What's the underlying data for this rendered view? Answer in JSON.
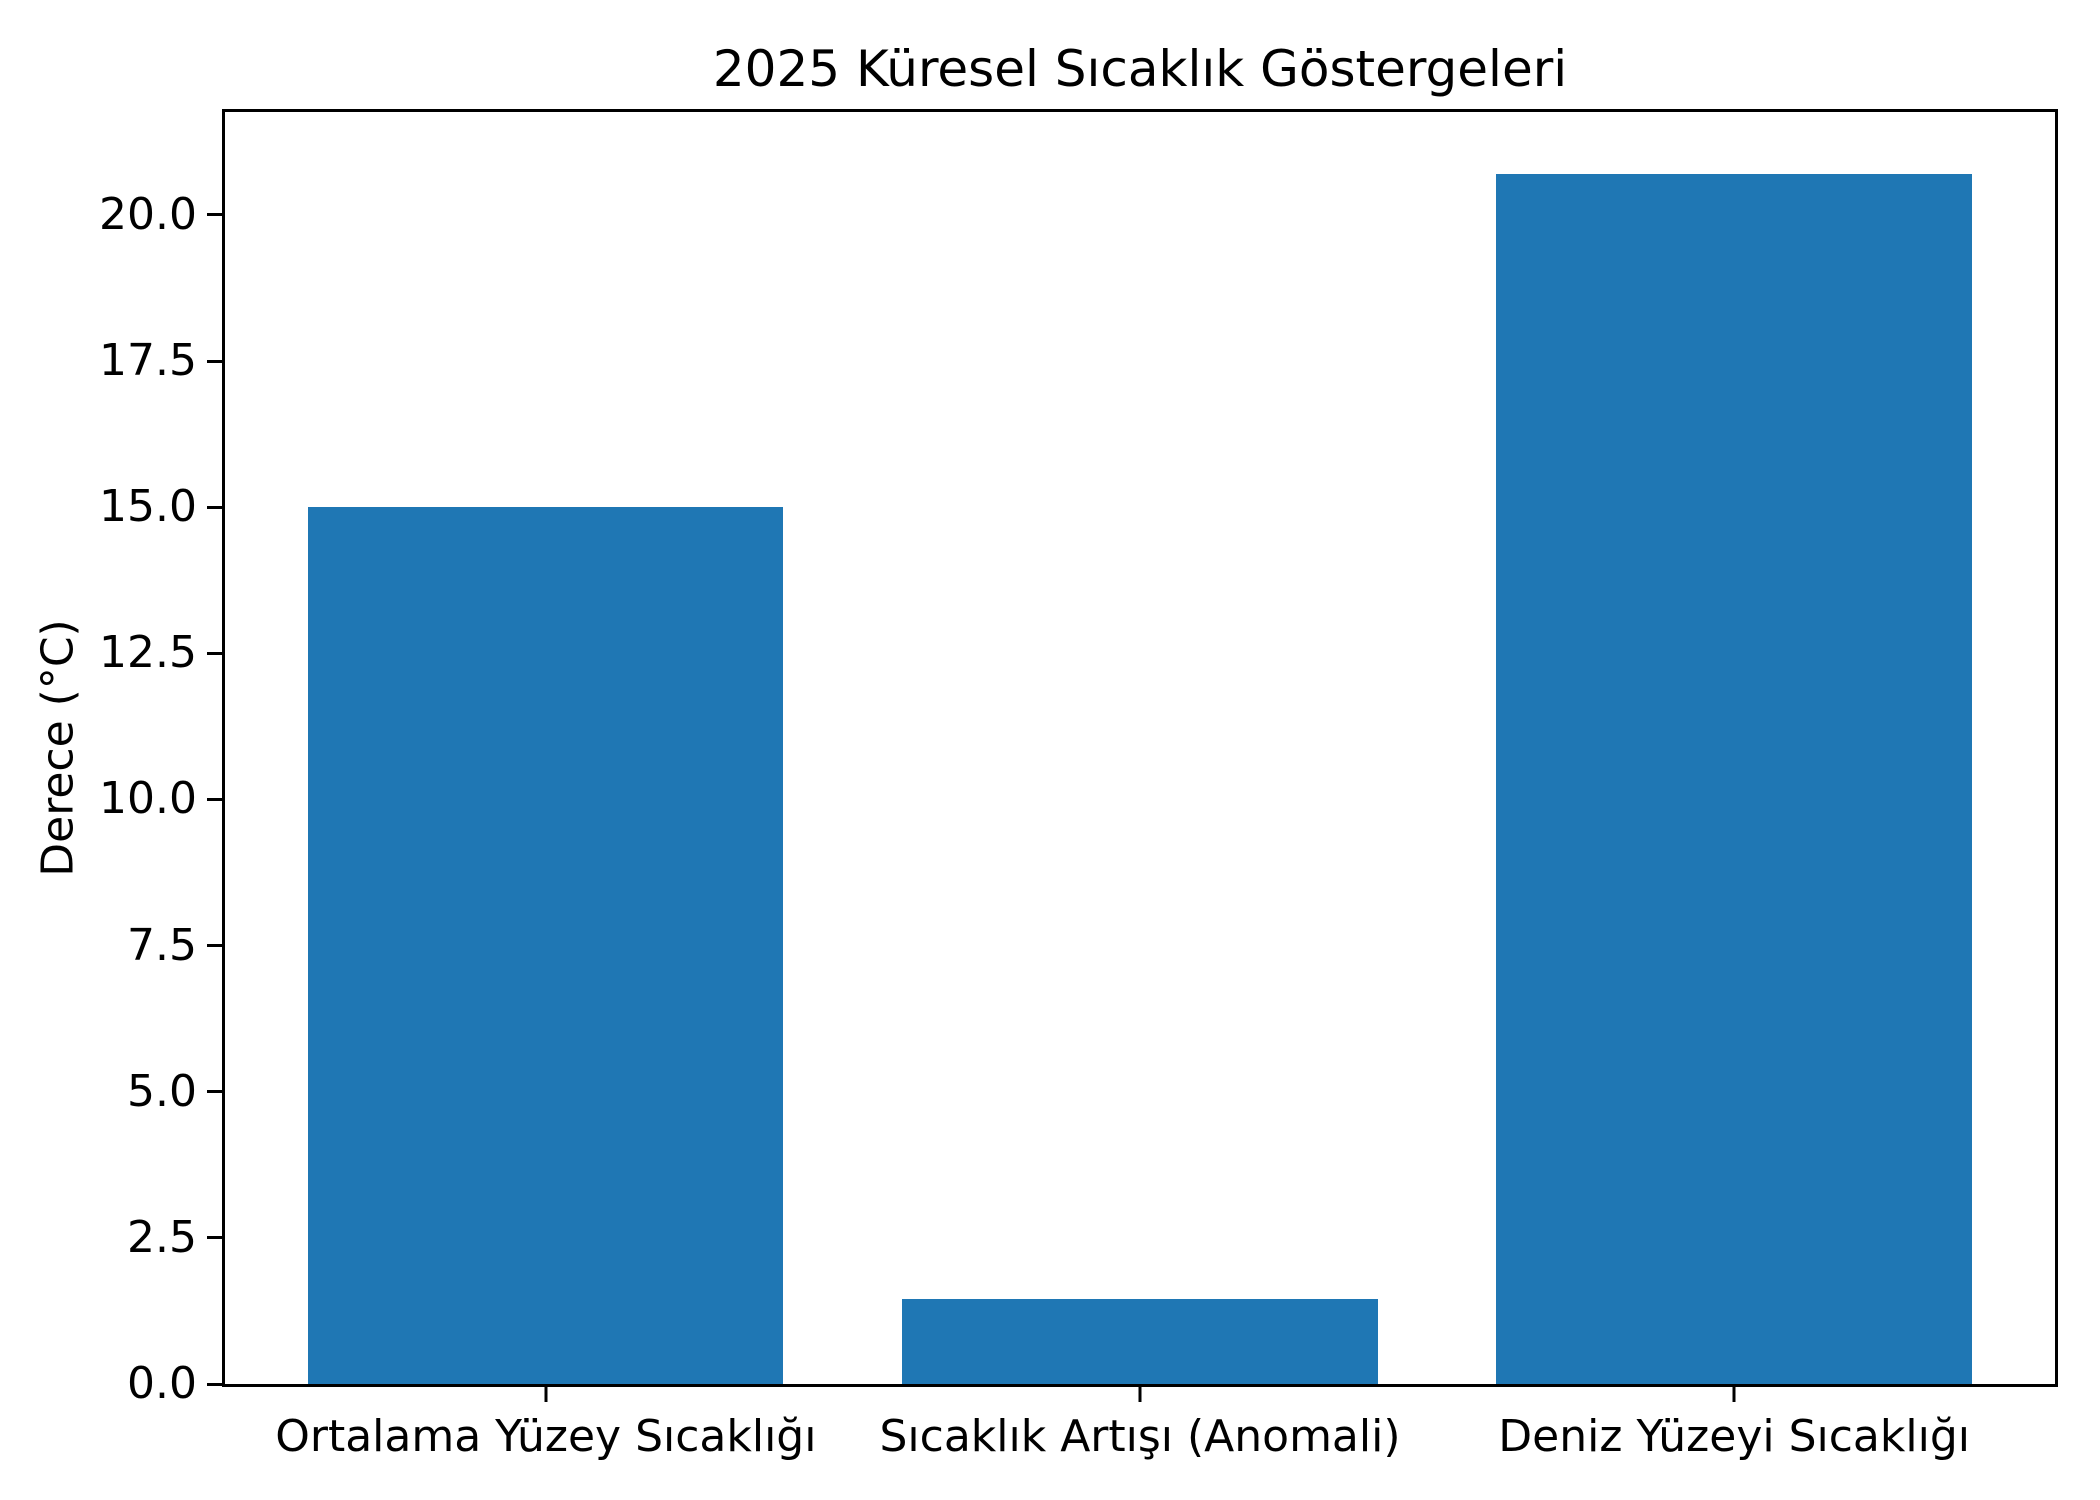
{
  "chart_data": {
    "type": "bar",
    "title": "2025 Küresel Sıcaklık Göstergeleri",
    "xlabel": "",
    "ylabel": "Derece (°C)",
    "categories": [
      "Ortalama Yüzey Sıcaklığı",
      "Sıcaklık Artışı (Anomali)",
      "Deniz Yüzeyi Sıcaklığı"
    ],
    "values": [
      15.0,
      1.45,
      20.7
    ],
    "yticks": [
      0.0,
      2.5,
      5.0,
      7.5,
      10.0,
      12.5,
      15.0,
      17.5,
      20.0
    ],
    "ylim": [
      0,
      21.76
    ],
    "bar_color": "#1f77b4",
    "axis_color": "#000000",
    "background_color": "#ffffff",
    "grid": false,
    "legend": null
  }
}
